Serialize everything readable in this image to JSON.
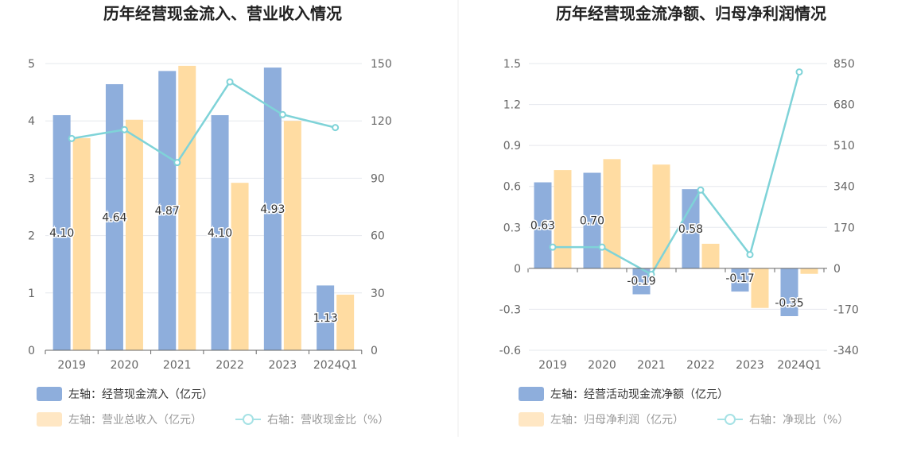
{
  "colors": {
    "bar1": "#8eaedc",
    "bar2": "#ffdca2",
    "line": "#7fd3d8",
    "axis": "#666666",
    "grid": "#e6e8ee",
    "divider": "#eeeeee"
  },
  "chart_data": [
    {
      "type": "bar",
      "title": "历年经营现金流入、营业收入情况",
      "categories": [
        "2019",
        "2020",
        "2021",
        "2022",
        "2023",
        "2024Q1"
      ],
      "left_ticks": [
        "0",
        "1",
        "2",
        "3",
        "4",
        "5"
      ],
      "right_ticks": [
        "0",
        "30",
        "60",
        "90",
        "120",
        "150"
      ],
      "ylim_left": [
        0,
        5
      ],
      "ylim_right": [
        0,
        150
      ],
      "series": [
        {
          "name": "左轴：经营现金流入（亿元）",
          "axis": "left",
          "kind": "bar",
          "values": [
            4.1,
            4.64,
            4.87,
            4.1,
            4.93,
            1.13
          ],
          "labels": [
            "4.10",
            "4.64",
            "4.87",
            "4.10",
            "4.93",
            "1.13"
          ]
        },
        {
          "name": "左轴：营业总收入（亿元）",
          "axis": "left",
          "kind": "bar",
          "values": [
            3.7,
            4.02,
            4.96,
            2.92,
            4.0,
            0.97
          ]
        },
        {
          "name": "右轴：营收现金比（%）",
          "axis": "right",
          "kind": "line",
          "values": [
            110.8,
            115.4,
            98.2,
            140.4,
            123.3,
            116.5
          ]
        }
      ],
      "legend": "bottom-left"
    },
    {
      "type": "bar",
      "title": "历年经营现金流净额、归母净利润情况",
      "categories": [
        "2019",
        "2020",
        "2021",
        "2022",
        "2023",
        "2024Q1"
      ],
      "left_ticks": [
        "-0.6",
        "-0.3",
        "0",
        "0.3",
        "0.6",
        "0.9",
        "1.2",
        "1.5"
      ],
      "right_ticks": [
        "-340",
        "-170",
        "0",
        "170",
        "340",
        "510",
        "680",
        "850"
      ],
      "ylim_left": [
        -0.6,
        1.5
      ],
      "ylim_right": [
        -340,
        850
      ],
      "series": [
        {
          "name": "左轴：经营活动现金流净额（亿元）",
          "axis": "left",
          "kind": "bar",
          "values": [
            0.63,
            0.7,
            -0.19,
            0.58,
            -0.17,
            -0.35
          ],
          "labels": [
            "0.63",
            "0.70",
            "-0.19",
            "0.58",
            "-0.17",
            "-0.35"
          ]
        },
        {
          "name": "左轴：归母净利润（亿元）",
          "axis": "left",
          "kind": "bar",
          "values": [
            0.72,
            0.8,
            0.76,
            0.18,
            -0.29,
            -0.04
          ]
        },
        {
          "name": "右轴：净现比（%）",
          "axis": "right",
          "kind": "line",
          "values": [
            88,
            88,
            -25,
            325,
            57,
            815
          ]
        }
      ],
      "legend": "bottom-left"
    }
  ]
}
